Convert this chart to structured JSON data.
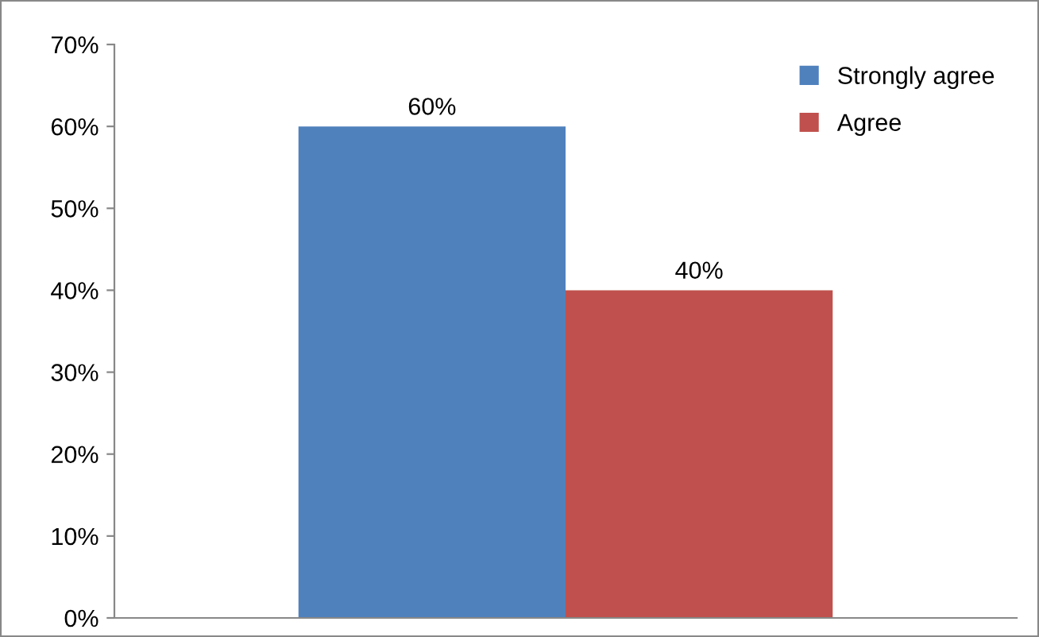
{
  "chart_data": {
    "type": "bar",
    "categories": [
      null
    ],
    "series": [
      {
        "name": "Strongly agree",
        "color": "#4f81bd",
        "values": [
          60
        ],
        "value_labels": [
          "60%"
        ]
      },
      {
        "name": "Agree",
        "color": "#c0504d",
        "values": [
          40
        ],
        "value_labels": [
          "40%"
        ]
      }
    ],
    "ylim": [
      0,
      70
    ],
    "yticks": [
      {
        "value": 0,
        "label": "0%"
      },
      {
        "value": 10,
        "label": "10%"
      },
      {
        "value": 20,
        "label": "20%"
      },
      {
        "value": 30,
        "label": "30%"
      },
      {
        "value": 40,
        "label": "40%"
      },
      {
        "value": 50,
        "label": "50%"
      },
      {
        "value": 60,
        "label": "60%"
      },
      {
        "value": 70,
        "label": "70%"
      }
    ],
    "grid": false,
    "legend": "top right"
  }
}
